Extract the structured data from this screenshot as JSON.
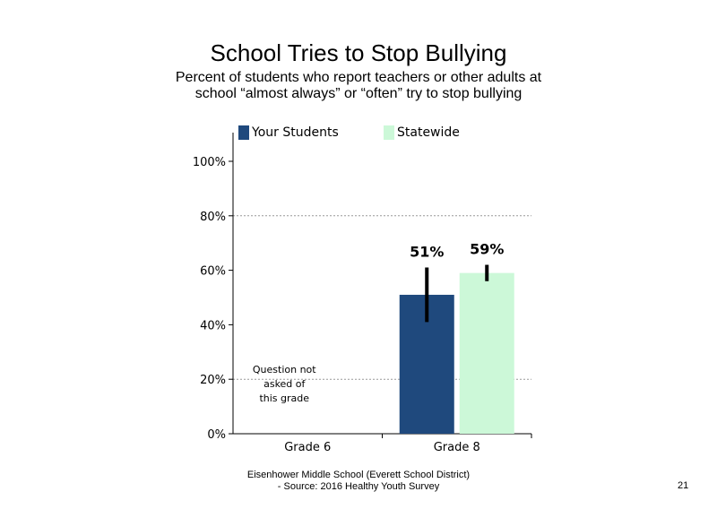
{
  "chart_data": {
    "type": "bar",
    "title": "School Tries to Stop Bullying",
    "subtitle": "Percent of students  who report teachers or other adults at school “almost  always” or “often” try to stop bullying",
    "categories": [
      "Grade 6",
      "Grade 8"
    ],
    "series": [
      {
        "name": "Your Students",
        "color": "#1f497d",
        "values": [
          null,
          51
        ],
        "labels": [
          "",
          "51%"
        ],
        "error_low": [
          null,
          41
        ],
        "error_high": [
          null,
          61
        ]
      },
      {
        "name": "Statewide",
        "color": "#ccf8d8",
        "values": [
          null,
          59
        ],
        "labels": [
          "",
          "59%"
        ],
        "error_low": [
          null,
          56
        ],
        "error_high": [
          null,
          62
        ]
      }
    ],
    "ylim": [
      0,
      100
    ],
    "yticks": [
      0,
      20,
      40,
      60,
      80,
      100
    ],
    "ytick_labels": [
      "0%",
      "20%",
      "40%",
      "60%",
      "80%",
      "100%"
    ],
    "gridlines": [
      20,
      80
    ],
    "annotation": {
      "category": "Grade 6",
      "lines": [
        "Question not",
        "asked of",
        "this grade"
      ]
    }
  },
  "footer": {
    "line1": "Eisenhower Middle School (Everett School District)",
    "line2": "- Source: 2016 Healthy  Youth Survey"
  },
  "page_number": "21"
}
